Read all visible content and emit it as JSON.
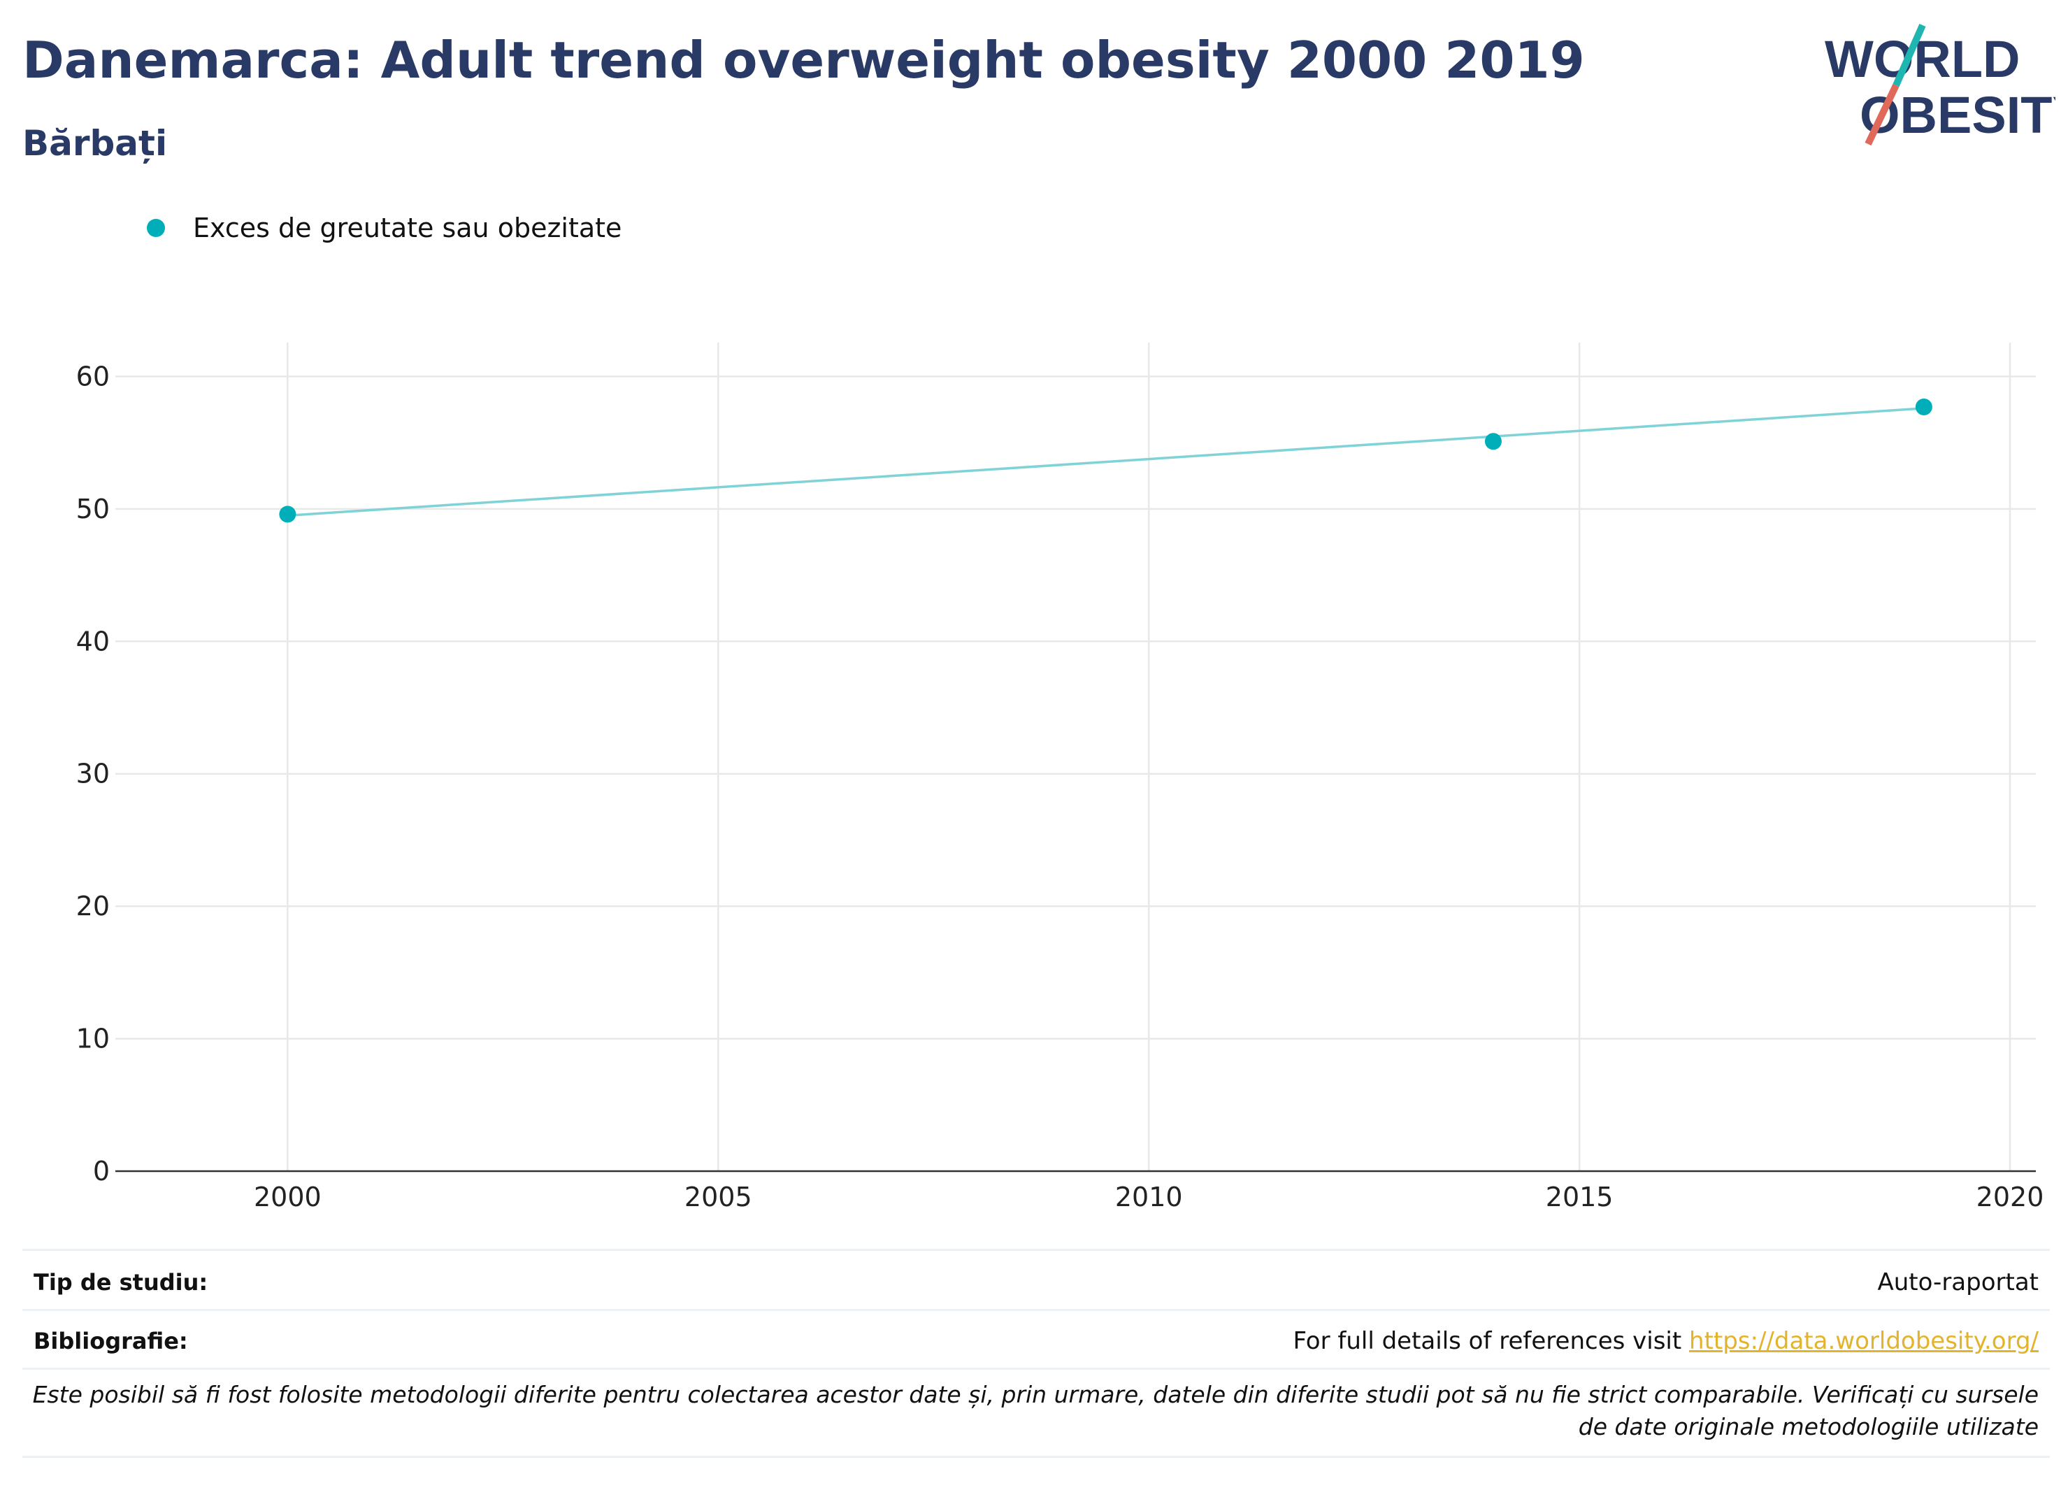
{
  "header": {
    "title": "Danemarca: Adult trend overweight obesity 2000 2019",
    "subtitle": "Bărbați"
  },
  "logo": {
    "line1": "WORLD",
    "line2": "OBESITY",
    "colors": {
      "text": "#2a3a66",
      "slash_top": "#1fb5b0",
      "slash_bottom": "#e0695a"
    }
  },
  "legend": {
    "label": "Exces de greutate sau obezitate",
    "color": "#00aeb9"
  },
  "chart_data": {
    "type": "scatter",
    "title": "",
    "xlabel": "",
    "ylabel": "",
    "xlim": [
      1998,
      2020.3
    ],
    "ylim": [
      0,
      61.5
    ],
    "x_ticks": [
      2000,
      2005,
      2010,
      2015,
      2020
    ],
    "y_ticks": [
      0,
      10,
      20,
      30,
      40,
      50,
      60
    ],
    "grid": true,
    "legend_position": "top-left",
    "series": [
      {
        "name": "Exces de greutate sau obezitate",
        "x": [
          2000,
          2014,
          2019
        ],
        "y": [
          49.6,
          55.1,
          57.7
        ],
        "color": "#00aeb9",
        "trendline": {
          "x": [
            2000,
            2019
          ],
          "y": [
            49.5,
            57.6
          ],
          "color": "#7fd3d7"
        }
      }
    ]
  },
  "footer": {
    "study_type_label": "Tip de studiu:",
    "study_type_value": "Auto-raportat",
    "bibliography_label": "Bibliografie:",
    "bibliography_text": "For full details of references visit",
    "bibliography_link": "https://data.worldobesity.org/",
    "note": "Este posibil să fi fost folosite metodologii diferite pentru colectarea acestor date și, prin urmare, datele din diferite studii pot să nu fie strict comparabile. Verificați cu sursele de date originale metodologiile utilizate"
  }
}
